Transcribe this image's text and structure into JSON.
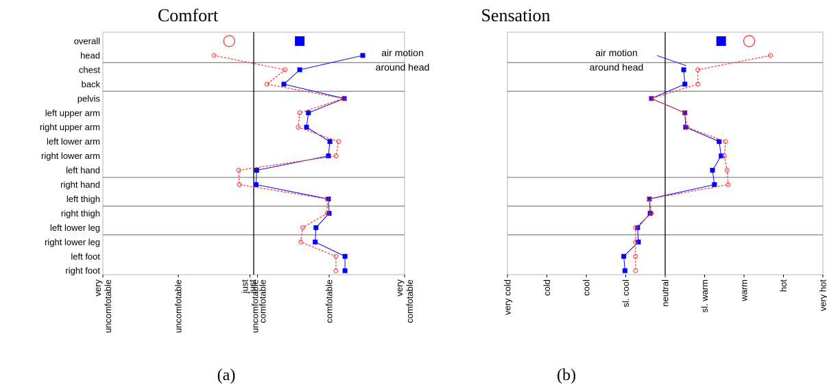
{
  "chart_data": [
    {
      "type": "line",
      "title": "Comfort",
      "caption": "(a)",
      "categories": [
        "overall",
        "head",
        "chest",
        "back",
        "pelvis",
        "left upper arm",
        "right upper arm",
        "left lower arm",
        "right lower arm",
        "left hand",
        "right hand",
        "left thigh",
        "right thigh",
        "left lower leg",
        "right lower leg",
        "left foot",
        "right foot"
      ],
      "xlim": [
        -4,
        4
      ],
      "ticks": [
        {
          "value": -4,
          "lines": [
            "very",
            "uncomfotable"
          ]
        },
        {
          "value": -2,
          "lines": [
            "uncomfotable"
          ]
        },
        {
          "value": -0.1,
          "lines": [
            "just",
            "uncomfotable"
          ]
        },
        {
          "value": 0.1,
          "lines": [
            "just",
            "comfotable"
          ]
        },
        {
          "value": 2,
          "lines": [
            "comfotable"
          ]
        },
        {
          "value": 4,
          "lines": [
            "very",
            "comfotable"
          ]
        }
      ],
      "reference_value": 0,
      "series": [
        {
          "style": "blue-square-solid",
          "values": [
            1.22,
            2.89,
            1.22,
            0.8,
            2.4,
            1.45,
            1.4,
            2.02,
            1.98,
            0.08,
            0.06,
            1.98,
            2.0,
            1.65,
            1.63,
            2.42,
            2.42
          ]
        },
        {
          "style": "red-circle-dashed",
          "values": [
            -0.65,
            -1.05,
            0.83,
            0.35,
            2.38,
            1.22,
            1.18,
            2.25,
            2.18,
            -0.4,
            -0.38,
            1.95,
            1.95,
            1.3,
            1.25,
            2.18,
            2.18
          ]
        }
      ],
      "annotation": {
        "lines": [
          "air motion",
          "around head"
        ]
      }
    },
    {
      "type": "line",
      "title": "Sensation",
      "caption": "(b)",
      "categories": [
        "overall",
        "head",
        "chest",
        "back",
        "pelvis",
        "left upper arm",
        "right upper arm",
        "left lower arm",
        "right lower arm",
        "left hand",
        "right hand",
        "left thigh",
        "right thigh",
        "left lower leg",
        "right lower leg",
        "left foot",
        "right foot"
      ],
      "xlim": [
        -4,
        4
      ],
      "ticks": [
        {
          "value": -4,
          "lines": [
            "very cold"
          ]
        },
        {
          "value": -3,
          "lines": [
            "cold"
          ]
        },
        {
          "value": -2,
          "lines": [
            "cool"
          ]
        },
        {
          "value": -1,
          "lines": [
            "sl. cool"
          ]
        },
        {
          "value": 0,
          "lines": [
            "neutral"
          ]
        },
        {
          "value": 1,
          "lines": [
            "sl. warm"
          ]
        },
        {
          "value": 2,
          "lines": [
            "warm"
          ]
        },
        {
          "value": 3,
          "lines": [
            "hot"
          ]
        },
        {
          "value": 4,
          "lines": [
            "very hot"
          ]
        }
      ],
      "reference_value": 0,
      "series": [
        {
          "style": "blue-square-solid",
          "values": [
            1.42,
            null,
            0.47,
            0.5,
            -0.35,
            0.5,
            0.52,
            1.37,
            1.42,
            1.2,
            1.25,
            -0.4,
            -0.38,
            -0.7,
            -0.68,
            -1.05,
            -1.02
          ]
        },
        {
          "style": "red-circle-dashed",
          "values": [
            2.13,
            2.67,
            0.83,
            0.83,
            -0.35,
            0.5,
            0.55,
            1.53,
            1.5,
            1.57,
            1.6,
            -0.4,
            -0.35,
            -0.75,
            -0.75,
            -0.75,
            -0.75
          ]
        }
      ],
      "annotation": {
        "lines": [
          "air motion",
          "around head"
        ]
      }
    }
  ]
}
